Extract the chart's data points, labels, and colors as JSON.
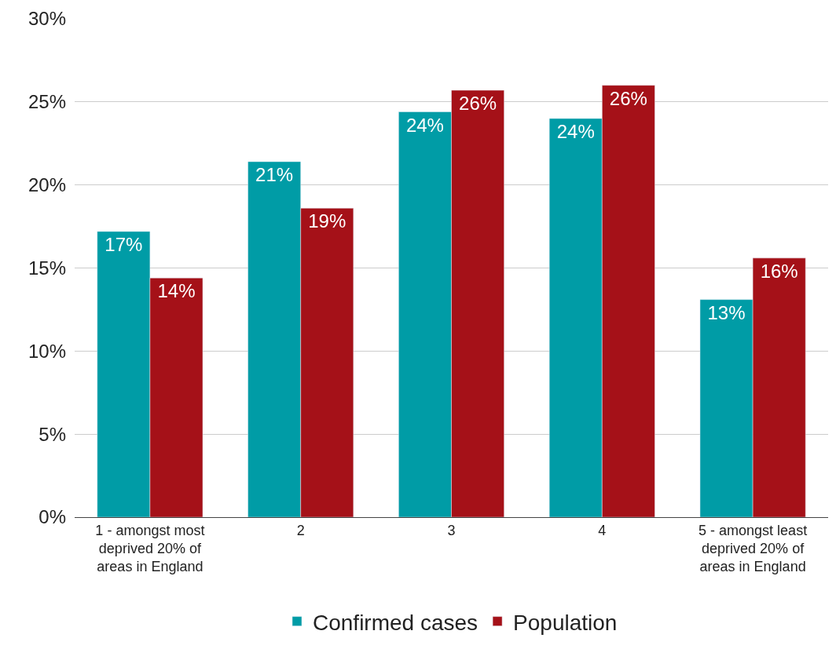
{
  "chart_data": {
    "type": "bar",
    "categories": [
      "1 - amongst most deprived 20% of areas in England",
      "2",
      "3",
      "4",
      "5 - amongst least deprived 20% of areas in England"
    ],
    "series": [
      {
        "name": "Confirmed cases",
        "color": "#009ca6",
        "values": [
          17.2,
          21.4,
          24.4,
          24.0,
          13.1
        ],
        "value_labels": [
          "17%",
          "21%",
          "24%",
          "24%",
          "13%"
        ]
      },
      {
        "name": "Population",
        "color": "#a51118",
        "values": [
          14.4,
          18.6,
          25.7,
          26.0,
          15.6
        ],
        "value_labels": [
          "14%",
          "19%",
          "26%",
          "26%",
          "16%"
        ]
      }
    ],
    "ylim": [
      0,
      30
    ],
    "yticks": [
      {
        "value": 0,
        "label": "0%"
      },
      {
        "value": 5,
        "label": "5%"
      },
      {
        "value": 10,
        "label": "10%"
      },
      {
        "value": 15,
        "label": "15%"
      },
      {
        "value": 20,
        "label": "20%"
      },
      {
        "value": 25,
        "label": "25%"
      },
      {
        "value": 30,
        "label": "30%"
      }
    ],
    "grid": "y",
    "legend": "bottom"
  }
}
